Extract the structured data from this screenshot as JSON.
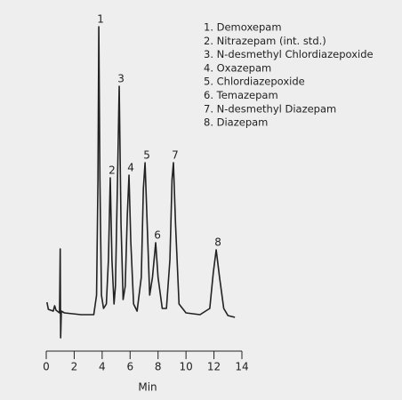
{
  "chart_data": {
    "type": "line",
    "xlabel": "Min",
    "xlim": [
      0,
      14
    ],
    "xticks": [
      0,
      2,
      4,
      6,
      8,
      10,
      12,
      14
    ],
    "ylim": [
      -30,
      330
    ],
    "color": "#222222",
    "x": [
      0.05,
      0.15,
      0.5,
      0.6,
      0.7,
      0.95,
      1.0,
      1.03,
      1.08,
      1.3,
      2.5,
      3.4,
      3.6,
      3.7,
      3.76,
      3.84,
      3.95,
      4.1,
      4.3,
      4.45,
      4.58,
      4.7,
      4.85,
      4.95,
      5.1,
      5.22,
      5.35,
      5.5,
      5.65,
      5.8,
      5.92,
      6.05,
      6.25,
      6.5,
      6.8,
      6.95,
      7.07,
      7.2,
      7.4,
      7.6,
      7.83,
      8.0,
      8.3,
      8.6,
      8.85,
      9.0,
      9.1,
      9.25,
      9.5,
      10,
      11,
      11.7,
      11.95,
      12.16,
      12.4,
      12.7,
      13,
      13.5
    ],
    "values": [
      12,
      4,
      2,
      8,
      3,
      0,
      72,
      -28,
      2,
      0,
      -2,
      -2,
      20,
      150,
      322,
      150,
      20,
      5,
      10,
      60,
      152,
      60,
      10,
      30,
      150,
      255,
      100,
      15,
      30,
      110,
      155,
      80,
      10,
      2,
      40,
      140,
      169,
      110,
      20,
      40,
      79,
      40,
      5,
      5,
      60,
      150,
      169,
      100,
      10,
      0,
      -2,
      5,
      45,
      71,
      40,
      5,
      -3,
      -5
    ],
    "peak_labels": [
      {
        "text": "1",
        "x": 3.76,
        "y": 322
      },
      {
        "text": "2",
        "x": 4.58,
        "y": 152
      },
      {
        "text": "3",
        "x": 5.22,
        "y": 255
      },
      {
        "text": "4",
        "x": 5.92,
        "y": 155
      },
      {
        "text": "5",
        "x": 7.07,
        "y": 169
      },
      {
        "text": "6",
        "x": 7.83,
        "y": 79
      },
      {
        "text": "7",
        "x": 9.1,
        "y": 169
      },
      {
        "text": "8",
        "x": 12.16,
        "y": 71
      }
    ],
    "legend": [
      "1. Demoxepam",
      "2. Nitrazepam (int. std.)",
      "3. N-desmethyl Chlordiazepoxide",
      "4. Oxazepam",
      "5. Chlordiazepoxide",
      "6. Temazepam",
      "7. N-desmethyl Diazepam",
      "8. Diazepam"
    ]
  }
}
